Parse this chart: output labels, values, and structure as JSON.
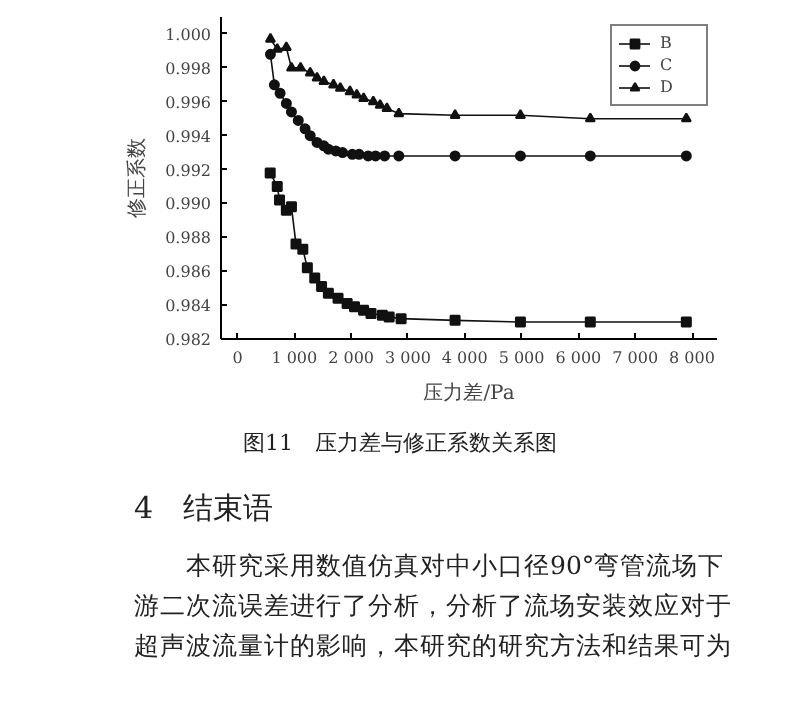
{
  "chart_data": {
    "type": "line",
    "xlabel": "压力差/Pa",
    "ylabel": "修正系数",
    "xlim": [
      -290,
      8440
    ],
    "ylim": [
      0.982,
      1.001
    ],
    "xticks": [
      {
        "value": 0,
        "label": "0"
      },
      {
        "value": 1000,
        "label": "1 000"
      },
      {
        "value": 2000,
        "label": "2 000"
      },
      {
        "value": 3000,
        "label": "3 000"
      },
      {
        "value": 4000,
        "label": "4 000"
      },
      {
        "value": 5000,
        "label": "5 000"
      },
      {
        "value": 6000,
        "label": "6 000"
      },
      {
        "value": 7000,
        "label": "7 000"
      },
      {
        "value": 8000,
        "label": "8 000"
      }
    ],
    "yticks": [
      {
        "value": 0.982,
        "label": "0.982"
      },
      {
        "value": 0.984,
        "label": "0.984"
      },
      {
        "value": 0.986,
        "label": "0.986"
      },
      {
        "value": 0.988,
        "label": "0.988"
      },
      {
        "value": 0.99,
        "label": "0.990"
      },
      {
        "value": 0.992,
        "label": "0.992"
      },
      {
        "value": 0.994,
        "label": "0.994"
      },
      {
        "value": 0.996,
        "label": "0.996"
      },
      {
        "value": 0.998,
        "label": "0.998"
      },
      {
        "value": 1.0,
        "label": "1.000"
      }
    ],
    "grid": false,
    "legend": "top right",
    "line_style": "solid",
    "series": [
      {
        "name": "B",
        "color": "#111111",
        "marker": "square",
        "x": [
          576,
          700,
          740,
          860,
          950,
          1030,
          1150,
          1230,
          1360,
          1480,
          1600,
          1770,
          1930,
          2060,
          2220,
          2350,
          2550,
          2670,
          2880,
          3830,
          4980,
          6210,
          7900
        ],
        "values": [
          0.9918,
          0.991,
          0.9902,
          0.9896,
          0.9898,
          0.9876,
          0.9873,
          0.9862,
          0.9856,
          0.9851,
          0.9847,
          0.9844,
          0.9841,
          0.9839,
          0.9837,
          0.9835,
          0.9834,
          0.9833,
          0.9832,
          0.9831,
          0.983,
          0.983,
          0.983
        ]
      },
      {
        "name": "C",
        "color": "#111111",
        "marker": "circle",
        "x": [
          580,
          650,
          750,
          860,
          950,
          1070,
          1190,
          1280,
          1400,
          1520,
          1600,
          1730,
          1850,
          2020,
          2140,
          2300,
          2430,
          2590,
          2840,
          3830,
          4980,
          6210,
          7900
        ],
        "values": [
          0.9988,
          0.997,
          0.9965,
          0.9959,
          0.9954,
          0.9949,
          0.9944,
          0.994,
          0.9936,
          0.9934,
          0.9932,
          0.9931,
          0.993,
          0.9929,
          0.9929,
          0.9928,
          0.9928,
          0.9928,
          0.9928,
          0.9928,
          0.9928,
          0.9928,
          0.9928
        ]
      },
      {
        "name": "D",
        "color": "#111111",
        "marker": "triangle",
        "x": [
          580,
          700,
          860,
          950,
          1110,
          1280,
          1400,
          1520,
          1690,
          1810,
          1980,
          2100,
          2220,
          2390,
          2510,
          2630,
          2840,
          3830,
          4980,
          6210,
          7900
        ],
        "values": [
          0.9997,
          0.9991,
          0.9992,
          0.998,
          0.998,
          0.9977,
          0.9974,
          0.9972,
          0.997,
          0.9968,
          0.9966,
          0.9964,
          0.9962,
          0.996,
          0.9958,
          0.9956,
          0.9953,
          0.9952,
          0.9952,
          0.995,
          0.995
        ]
      }
    ],
    "annotations": [
      "图11　压力差与修正系数关系图",
      "4　结束语",
      "本研究采用数值仿真对中小口径90°弯管流场下",
      "游二次流误差进行了分析，分析了流场安装效应对于",
      "超声波流量计的影响，本研究的研究方法和结果可为"
    ]
  }
}
